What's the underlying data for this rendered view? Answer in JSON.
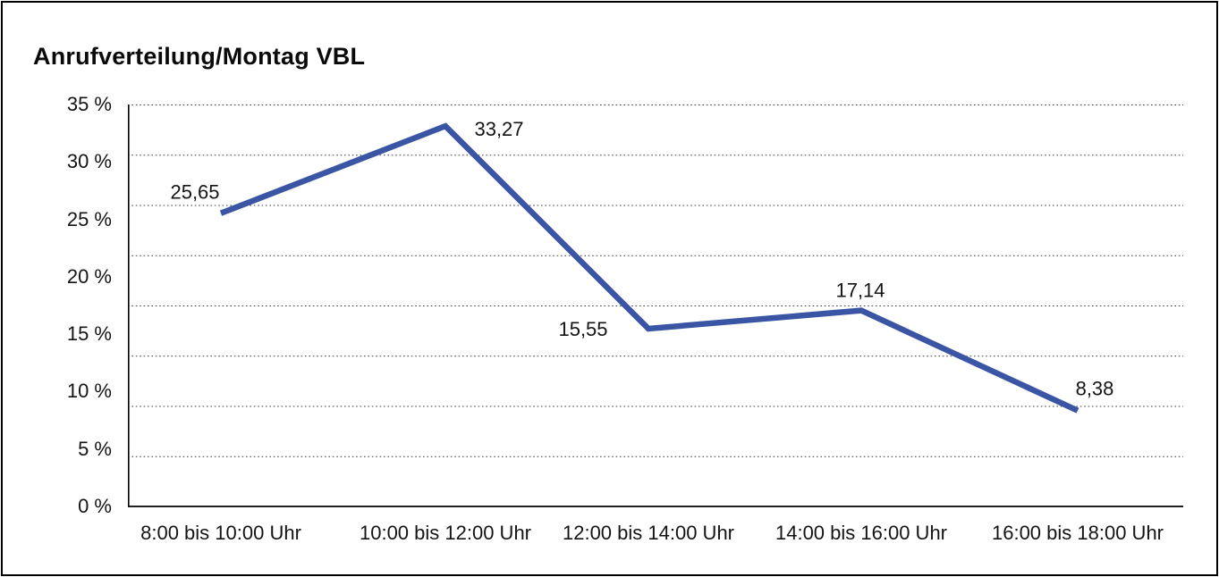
{
  "title": "Anrufverteilung/Montag VBL",
  "chart_data": {
    "type": "line",
    "title": "Anrufverteilung/Montag VBL",
    "categories": [
      "8:00 bis 10:00 Uhr",
      "10:00 bis 12:00 Uhr",
      "12:00 bis 14:00 Uhr",
      "14:00 bis 16:00 Uhr",
      "16:00 bis 18:00 Uhr"
    ],
    "values": [
      25.65,
      33.27,
      15.55,
      17.14,
      8.38
    ],
    "data_labels": [
      "25,65",
      "33,27",
      "15,55",
      "17,14",
      "8,38"
    ],
    "y_axis": {
      "unit": "%",
      "min": 0,
      "max": 35,
      "tick_step": 5,
      "tick_labels": [
        "35 %",
        "30 %",
        "25 %",
        "20 %",
        "15 %",
        "10 %",
        "5 %",
        "0 %"
      ]
    },
    "grid": {
      "horizontal": true,
      "style": "dotted",
      "divisions": 8
    },
    "legend_position": "none",
    "line_color": "#3A55A4",
    "grid_color": "#3c3c3c",
    "axis_color": "#000000",
    "background": "#FFFFFF",
    "text_color": "#141414"
  }
}
